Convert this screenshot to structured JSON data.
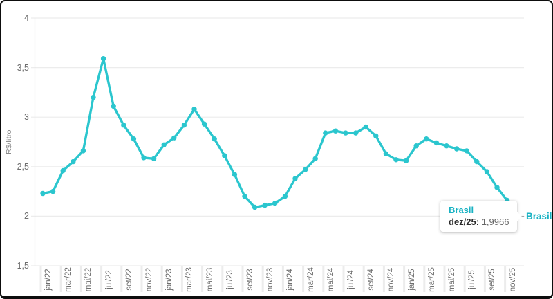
{
  "chart_data": {
    "type": "line",
    "title": "",
    "xlabel": "",
    "ylabel": "R$/litro",
    "ylim": [
      1.5,
      4
    ],
    "grid": "horizontal",
    "y_tick_labels": [
      "4",
      "3,5",
      "3",
      "2,5",
      "2",
      "1,5"
    ],
    "y_tick_values": [
      4,
      3.5,
      3,
      2.5,
      2,
      1.5
    ],
    "x": [
      "jan/22",
      "fev/22",
      "mar/22",
      "abr/22",
      "mai/22",
      "jun/22",
      "jul/22",
      "ago/22",
      "set/22",
      "out/22",
      "nov/22",
      "dez/22",
      "jan/23",
      "fev/23",
      "mar/23",
      "abr/23",
      "mai/23",
      "jun/23",
      "jul/23",
      "ago/23",
      "set/23",
      "out/23",
      "nov/23",
      "dez/23",
      "jan/24",
      "fev/24",
      "mar/24",
      "abr/24",
      "mai/24",
      "jun/24",
      "jul/24",
      "ago/24",
      "set/24",
      "out/24",
      "nov/24",
      "dez/24",
      "jan/25",
      "fev/25",
      "mar/25",
      "abr/25",
      "mai/25",
      "jun/25",
      "jul/25",
      "ago/25",
      "set/25",
      "out/25",
      "nov/25",
      "dez/25"
    ],
    "x_tick_shown_every": 2,
    "series": [
      {
        "name": "Brasil",
        "values": [
          2.23,
          2.25,
          2.46,
          2.55,
          2.66,
          3.2,
          3.59,
          3.11,
          2.92,
          2.78,
          2.59,
          2.58,
          2.72,
          2.79,
          2.92,
          3.08,
          2.93,
          2.78,
          2.61,
          2.42,
          2.2,
          2.09,
          2.11,
          2.13,
          2.2,
          2.38,
          2.47,
          2.58,
          2.84,
          2.86,
          2.84,
          2.84,
          2.9,
          2.81,
          2.63,
          2.57,
          2.56,
          2.71,
          2.78,
          2.74,
          2.71,
          2.68,
          2.66,
          2.55,
          2.45,
          2.29,
          2.16,
          1.9966
        ]
      }
    ],
    "legend_position": "end-of-line"
  },
  "end_label": {
    "text": "Brasil"
  },
  "tooltip": {
    "title": "Brasil",
    "label": "dez/25:",
    "value": "1,9966"
  },
  "colors": {
    "line": "#2BC6CE",
    "accent_text": "#18B2C3",
    "tick_text": "#6E6E6E",
    "grid": "#ECECEC",
    "axis": "#E2E2E2",
    "x_tick_strip": "#ECECEC",
    "frame": "#0D0D0D",
    "tooltip_label": "#2B2B2B",
    "tooltip_value": "#666666",
    "background": "#FFFFFF"
  }
}
